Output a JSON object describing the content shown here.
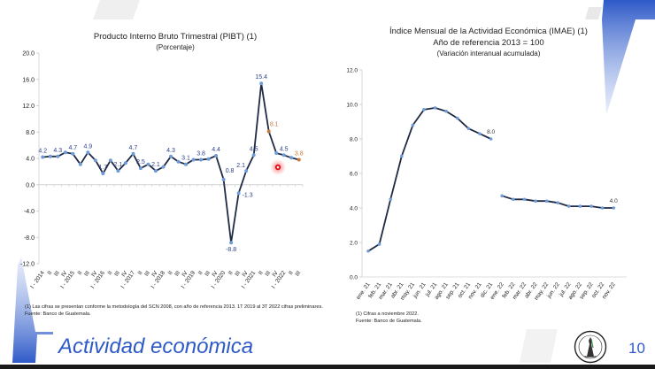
{
  "slide": {
    "title": "Actividad económica",
    "page_number": "10",
    "logo_icon": "banco-de-guatemala-seal",
    "colors": {
      "accent_blue": "#2e5ac8",
      "series_line": "#1f2a44",
      "marker_blue": "#6f9bd6",
      "projection_orange": "#c87a3a",
      "label_blue": "#2b3f8c"
    }
  },
  "chart_data": [
    {
      "type": "line",
      "title": "Producto Interno Bruto Trimestral (PIBT) (1)",
      "subtitle": "(Porcentaje)",
      "xlabel": "",
      "ylabel": "",
      "ylim": [
        -12.0,
        20.0
      ],
      "yticks": [
        "20.0",
        "16.0",
        "12.0",
        "8.0",
        "4.0",
        "0.0",
        "-4.0",
        "-8.0",
        "-12.0"
      ],
      "ytick_values": [
        20,
        16,
        12,
        8,
        4,
        0,
        -4,
        -8,
        -12
      ],
      "grid": false,
      "categories": [
        "I - 2014",
        "II",
        "III",
        "IV",
        "I - 2015",
        "II",
        "III",
        "IV",
        "I - 2016",
        "II",
        "III",
        "IV",
        "I - 2017",
        "II",
        "III",
        "IV",
        "I - 2018",
        "II",
        "III",
        "IV",
        "I - 2019",
        "II",
        "III",
        "IV",
        "I - 2020",
        "II",
        "III",
        "IV",
        "I - 2021",
        "II",
        "III",
        "IV",
        "I - 2022",
        "II",
        "III"
      ],
      "series": [
        {
          "name": "PIBT",
          "values": [
            4.2,
            4.3,
            4.3,
            4.9,
            4.7,
            3.1,
            4.9,
            3.7,
            1.7,
            3.7,
            2.1,
            3.3,
            4.7,
            2.5,
            3.1,
            2.1,
            2.7,
            4.3,
            3.5,
            3.1,
            3.8,
            3.8,
            3.9,
            4.4,
            0.8,
            -8.8,
            -1.3,
            2.1,
            4.5,
            15.4,
            8.1,
            4.8,
            4.5,
            4.1,
            3.8
          ],
          "highlighted_orange_indices": [
            30,
            34
          ]
        }
      ],
      "data_labels": [
        {
          "index": 0,
          "text": "4.2"
        },
        {
          "index": 2,
          "text": "4.3"
        },
        {
          "index": 4,
          "text": "4.7"
        },
        {
          "index": 6,
          "text": "4.9"
        },
        {
          "index": 8,
          "text": "1.7"
        },
        {
          "index": 10,
          "text": "2.1"
        },
        {
          "index": 12,
          "text": "4.7"
        },
        {
          "index": 13,
          "text": "2.5"
        },
        {
          "index": 15,
          "text": "2.1"
        },
        {
          "index": 17,
          "text": "4.3"
        },
        {
          "index": 19,
          "text": "3.1"
        },
        {
          "index": 21,
          "text": "3.8"
        },
        {
          "index": 23,
          "text": "4.4"
        },
        {
          "index": 24,
          "text": "0.8"
        },
        {
          "index": 25,
          "text": "-8.8"
        },
        {
          "index": 26,
          "text": "-1.3"
        },
        {
          "index": 27,
          "text": "2.1"
        },
        {
          "index": 28,
          "text": "4.5"
        },
        {
          "index": 29,
          "text": "15.4"
        },
        {
          "index": 30,
          "text": "8.1"
        },
        {
          "index": 32,
          "text": "4.5"
        },
        {
          "index": 34,
          "text": "3.8"
        }
      ],
      "notes": [
        "(1) Las cifras se presentan conforme la metodología del SCN 2008, con año de referencia 2013. 1T 2019 al 3T 2022 cifras preliminares.",
        "Fuente: Banco de Guatemala."
      ]
    },
    {
      "type": "line",
      "title": "Índice Mensual de la Actividad Económica (IMAE) (1)",
      "subtitle": "Año de referencia 2013 = 100",
      "subtitle2": "(Variación interanual acumulada)",
      "xlabel": "",
      "ylabel": "",
      "ylim": [
        0.0,
        12.0
      ],
      "yticks": [
        "12.0",
        "10.0",
        "8.0",
        "6.0",
        "4.0",
        "2.0",
        "0.0"
      ],
      "ytick_values": [
        12,
        10,
        8,
        6,
        4,
        2,
        0
      ],
      "grid": false,
      "categories": [
        "ene. 21",
        "feb. 21",
        "mar. 21",
        "abr. 21",
        "may. 21",
        "jun. 21",
        "jul. 21",
        "ago. 21",
        "sep. 21",
        "oct. 21",
        "nov. 21",
        "dic. 21",
        "ene. 22",
        "feb. 22",
        "mar. 22",
        "abr. 22",
        "may. 22",
        "jun. 22",
        "jul. 22",
        "ago. 22",
        "sep. 22",
        "oct. 22",
        "nov. 22"
      ],
      "series": [
        {
          "name": "2021",
          "start_index": 0,
          "values": [
            1.5,
            1.9,
            4.5,
            7.0,
            8.8,
            9.7,
            9.8,
            9.6,
            9.2,
            8.6,
            8.3,
            8.0
          ]
        },
        {
          "name": "2022",
          "start_index": 12,
          "values": [
            4.7,
            4.5,
            4.5,
            4.4,
            4.4,
            4.3,
            4.1,
            4.1,
            4.1,
            4.0,
            4.0
          ]
        }
      ],
      "data_labels": [
        {
          "series": 0,
          "index": 11,
          "text": "8.0"
        },
        {
          "series": 1,
          "index": 10,
          "text": "4.0"
        }
      ],
      "notes": [
        "(1) Cifras a noviembre 2022.",
        "Fuente: Banco de Guatemala."
      ]
    }
  ]
}
